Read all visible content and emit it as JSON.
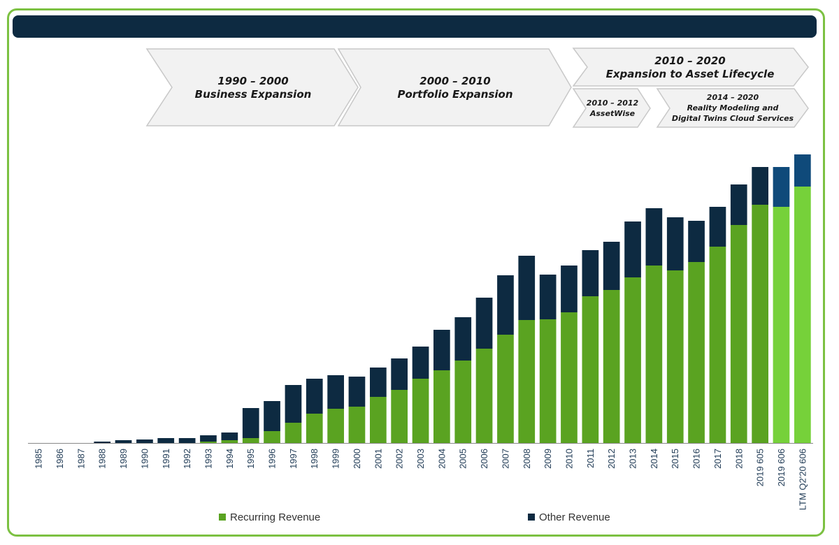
{
  "header": {
    "title": ""
  },
  "phases": [
    {
      "line1": "1990 – 2000",
      "line2": "Business Expansion"
    },
    {
      "line1": "2000 – 2010",
      "line2": "Portfolio Expansion"
    },
    {
      "line1": "2010 – 2020",
      "line2": "Expansion to Asset Lifecycle"
    }
  ],
  "subphases": [
    {
      "line1": "2010 – 2012",
      "line2": "AssetWise"
    },
    {
      "line1": "2014 – 2020",
      "line2": "Reality Modeling and",
      "line3": "Digital Twins Cloud Services"
    }
  ],
  "colors": {
    "recurring": "#5aa321",
    "other": "#0d2a41",
    "recurring_projected": "#76d13a",
    "other_projected": "#0f4a7a",
    "frame": "#7cc142",
    "chevron_fill": "#f2f2f2",
    "chevron_stroke": "#c8c8c8"
  },
  "chart_data": {
    "type": "bar",
    "stacked": true,
    "categories": [
      "1985",
      "1986",
      "1987",
      "1988",
      "1989",
      "1990",
      "1991",
      "1992",
      "1993",
      "1994",
      "1995",
      "1996",
      "1997",
      "1998",
      "1999",
      "2000",
      "2001",
      "2002",
      "2003",
      "2004",
      "2005",
      "2006",
      "2007",
      "2008",
      "2009",
      "2010",
      "2011",
      "2012",
      "2013",
      "2014",
      "2015",
      "2016",
      "2017",
      "2018",
      "2019 605",
      "2019 606",
      "LTM Q2'20 606"
    ],
    "series": [
      {
        "name": "Recurring Revenue",
        "values": [
          0,
          0,
          0,
          0,
          0,
          0,
          0,
          0,
          2,
          4,
          7,
          17,
          29,
          42,
          49,
          52,
          66,
          76,
          92,
          104,
          118,
          135,
          155,
          176,
          177,
          187,
          210,
          219,
          237,
          254,
          247,
          259,
          281,
          312,
          341,
          338,
          367
        ]
      },
      {
        "name": "Other Revenue",
        "values": [
          0,
          0,
          0,
          2,
          4,
          5,
          7,
          7,
          9,
          11,
          43,
          43,
          54,
          50,
          48,
          43,
          42,
          45,
          46,
          58,
          62,
          73,
          85,
          92,
          64,
          67,
          66,
          69,
          80,
          82,
          76,
          59,
          57,
          58,
          54,
          57,
          46
        ]
      }
    ],
    "projected_from_index": 35,
    "xlabel": "",
    "ylabel": "",
    "ylim": [
      0,
      420
    ],
    "grid": false,
    "legend_position": "bottom"
  }
}
